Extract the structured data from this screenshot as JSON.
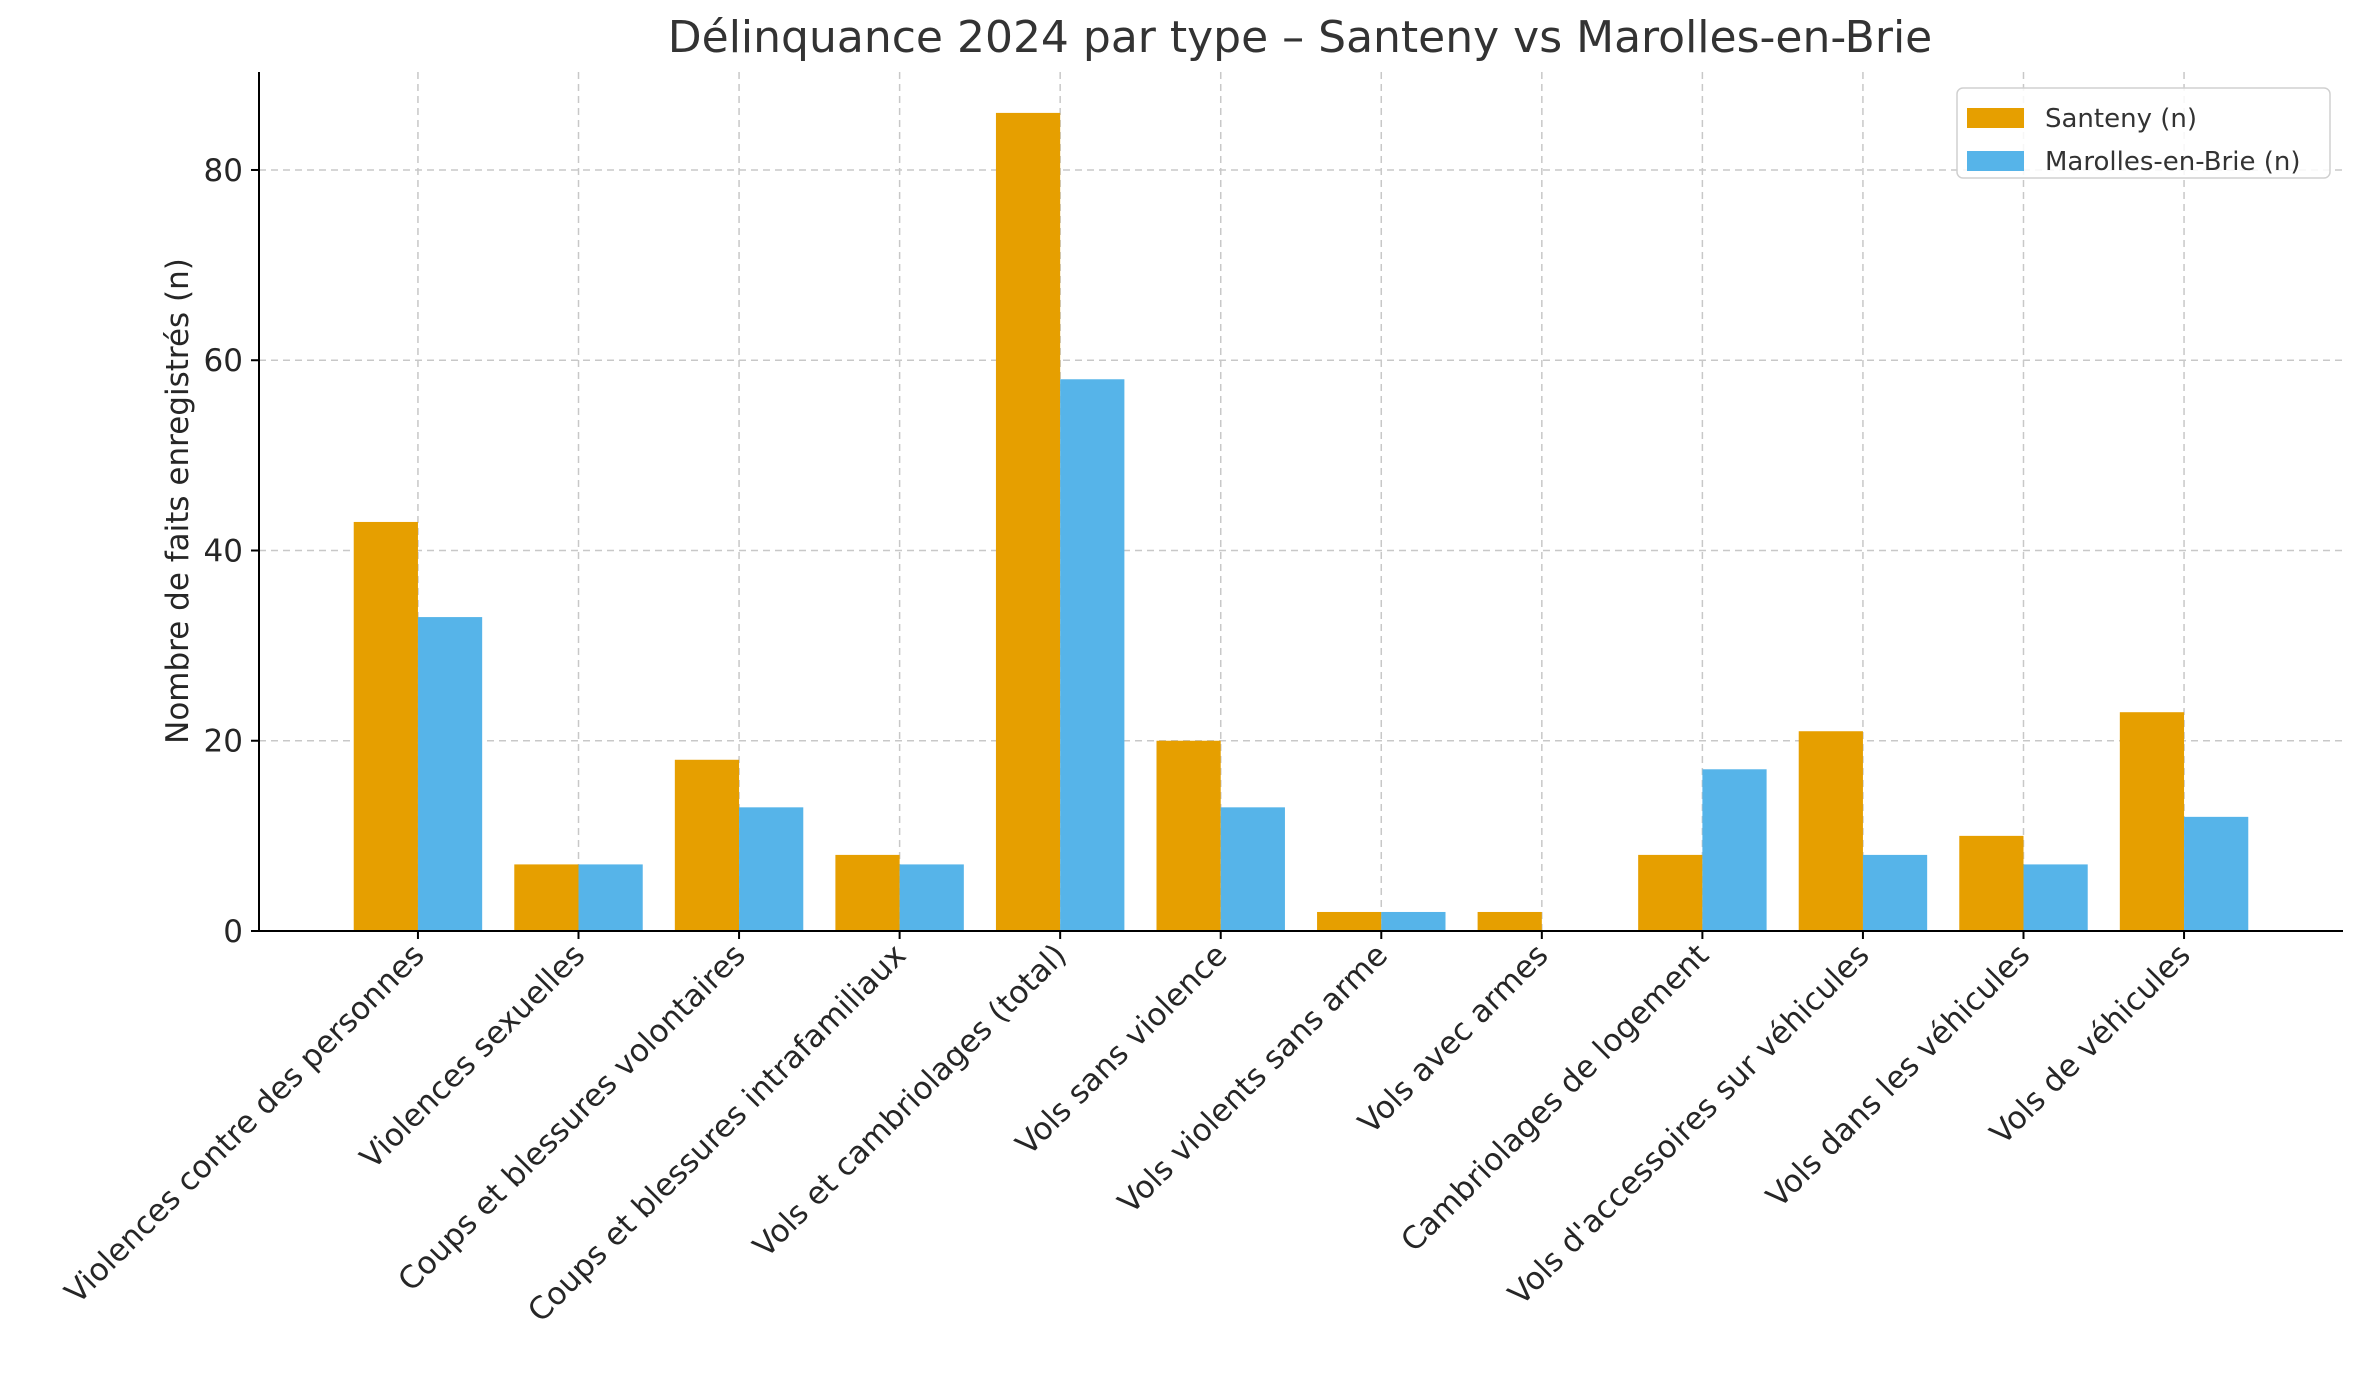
{
  "chart_data": {
    "type": "bar",
    "title": "Délinquance 2024 par type – Santeny vs Marolles-en-Brie",
    "xlabel": "",
    "ylabel": "Nombre de faits enregistrés (n)",
    "ylim": [
      0,
      90.3
    ],
    "yticks": [
      0,
      20,
      40,
      60,
      80
    ],
    "grid": true,
    "legend_position": "top-right",
    "categories": [
      "Violences contre des personnes",
      "Violences sexuelles",
      "Coups et blessures volontaires",
      "Coups et blessures intrafamiliaux",
      "Vols et cambriolages (total)",
      "Vols sans violence",
      "Vols violents sans arme",
      "Vols avec armes",
      "Cambriolages de logement",
      "Vols d'accessoires sur véhicules",
      "Vols dans les véhicules",
      "Vols de véhicules"
    ],
    "series": [
      {
        "name": "Santeny (n)",
        "color": "#E69F00",
        "values": [
          43,
          7,
          18,
          8,
          86,
          20,
          2,
          2,
          8,
          21,
          10,
          23
        ]
      },
      {
        "name": "Marolles-en-Brie (n)",
        "color": "#56B4E9",
        "values": [
          33,
          7,
          13,
          7,
          58,
          13,
          2,
          0,
          17,
          8,
          7,
          12
        ]
      }
    ]
  }
}
